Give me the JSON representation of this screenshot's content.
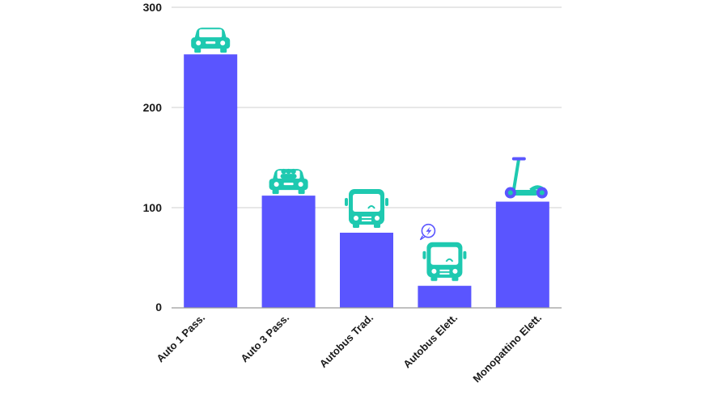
{
  "chart_data": {
    "type": "bar",
    "title": "",
    "xlabel": "",
    "ylabel": "",
    "categories": [
      "Auto 1 Pass.",
      "Auto 3 Pass.",
      "Autobus Trad.",
      "Autobus Elett.",
      "Monopattino Elett."
    ],
    "values": [
      253,
      112,
      75,
      22,
      106
    ],
    "icons": [
      "car-icon",
      "car-passengers-icon",
      "bus-icon",
      "electric-bus-icon",
      "electric-scooter-icon"
    ],
    "ylim": [
      0,
      300
    ],
    "yticks": [
      0,
      100,
      200,
      300
    ],
    "grid": true,
    "bar_color": "#5a55ff",
    "icon_color": "#1ec9b0",
    "accent_color": "#5a55ff"
  }
}
